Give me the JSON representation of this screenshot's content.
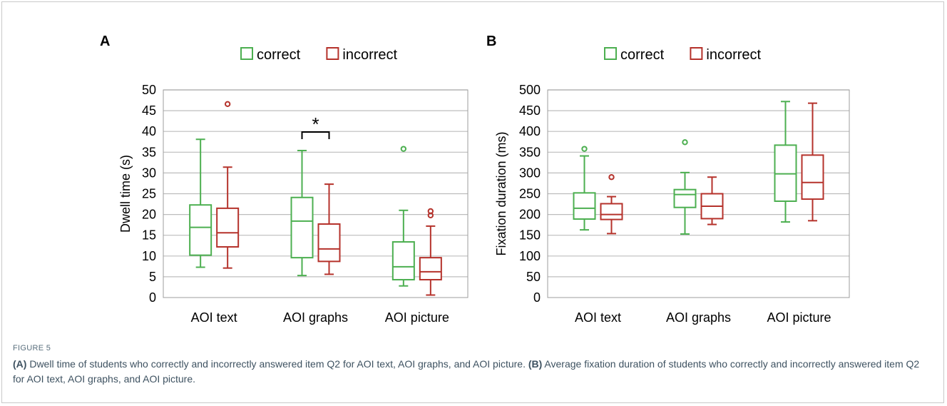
{
  "figure": {
    "label": "FIGURE 5",
    "caption": [
      {
        "ref": "(A)",
        "text": " Dwell time of students who correctly and incorrectly answered item Q2 for AOI text, AOI graphs, and AOI picture. "
      },
      {
        "ref": "(B)",
        "text": " Average fixation duration of students who correctly and incorrectly answered item Q2 for AOI text, AOI graphs, and AOI picture."
      }
    ]
  },
  "colors": {
    "correct": "#4caf50",
    "incorrect": "#b5322b",
    "grid": "#bdbdbd",
    "axis_frame": "#9e9e9e"
  },
  "chart_data": [
    {
      "type": "box",
      "panel": "A",
      "ylabel": "Dwell time (s)",
      "ylim": [
        0,
        50
      ],
      "yticks": [
        0,
        5,
        10,
        15,
        20,
        25,
        30,
        35,
        40,
        45,
        50
      ],
      "grid": true,
      "legend": [
        "correct",
        "incorrect"
      ],
      "legend_position": "top-center",
      "categories": [
        "AOI text",
        "AOI graphs",
        "AOI picture"
      ],
      "series": [
        {
          "name": "correct",
          "boxes": [
            {
              "min": 7.3,
              "q1": 10.2,
              "median": 16.9,
              "q3": 22.3,
              "max": 38.1,
              "outliers": []
            },
            {
              "min": 5.3,
              "q1": 9.6,
              "median": 18.4,
              "q3": 24.1,
              "max": 35.4,
              "outliers": []
            },
            {
              "min": 2.8,
              "q1": 4.3,
              "median": 7.4,
              "q3": 13.4,
              "max": 21.0,
              "outliers": [
                35.8
              ]
            }
          ]
        },
        {
          "name": "incorrect",
          "boxes": [
            {
              "min": 7.1,
              "q1": 12.2,
              "median": 15.6,
              "q3": 21.5,
              "max": 31.4,
              "outliers": [
                46.6
              ]
            },
            {
              "min": 5.6,
              "q1": 8.7,
              "median": 11.7,
              "q3": 17.7,
              "max": 27.3,
              "outliers": []
            },
            {
              "min": 0.6,
              "q1": 4.3,
              "median": 6.2,
              "q3": 9.6,
              "max": 17.2,
              "outliers": [
                19.8,
                20.8
              ]
            }
          ]
        }
      ],
      "annotations": [
        {
          "text": "*",
          "category": "AOI graphs"
        }
      ]
    },
    {
      "type": "box",
      "panel": "B",
      "ylabel": "Fixation duration (ms)",
      "ylim": [
        0,
        500
      ],
      "yticks": [
        0,
        50,
        100,
        150,
        200,
        250,
        300,
        350,
        400,
        450,
        500
      ],
      "grid": true,
      "legend": [
        "correct",
        "incorrect"
      ],
      "legend_position": "top-center",
      "categories": [
        "AOI text",
        "AOI graphs",
        "AOI picture"
      ],
      "series": [
        {
          "name": "correct",
          "boxes": [
            {
              "min": 163,
              "q1": 189,
              "median": 215,
              "q3": 252,
              "max": 341,
              "outliers": [
                358
              ]
            },
            {
              "min": 153,
              "q1": 217,
              "median": 248,
              "q3": 260,
              "max": 301,
              "outliers": [
                374
              ]
            },
            {
              "min": 182,
              "q1": 232,
              "median": 298,
              "q3": 367,
              "max": 472,
              "outliers": []
            }
          ]
        },
        {
          "name": "incorrect",
          "boxes": [
            {
              "min": 154,
              "q1": 188,
              "median": 200,
              "q3": 226,
              "max": 243,
              "outliers": [
                290
              ]
            },
            {
              "min": 176,
              "q1": 190,
              "median": 220,
              "q3": 250,
              "max": 290,
              "outliers": []
            },
            {
              "min": 185,
              "q1": 237,
              "median": 277,
              "q3": 343,
              "max": 468,
              "outliers": []
            }
          ]
        }
      ],
      "annotations": []
    }
  ]
}
